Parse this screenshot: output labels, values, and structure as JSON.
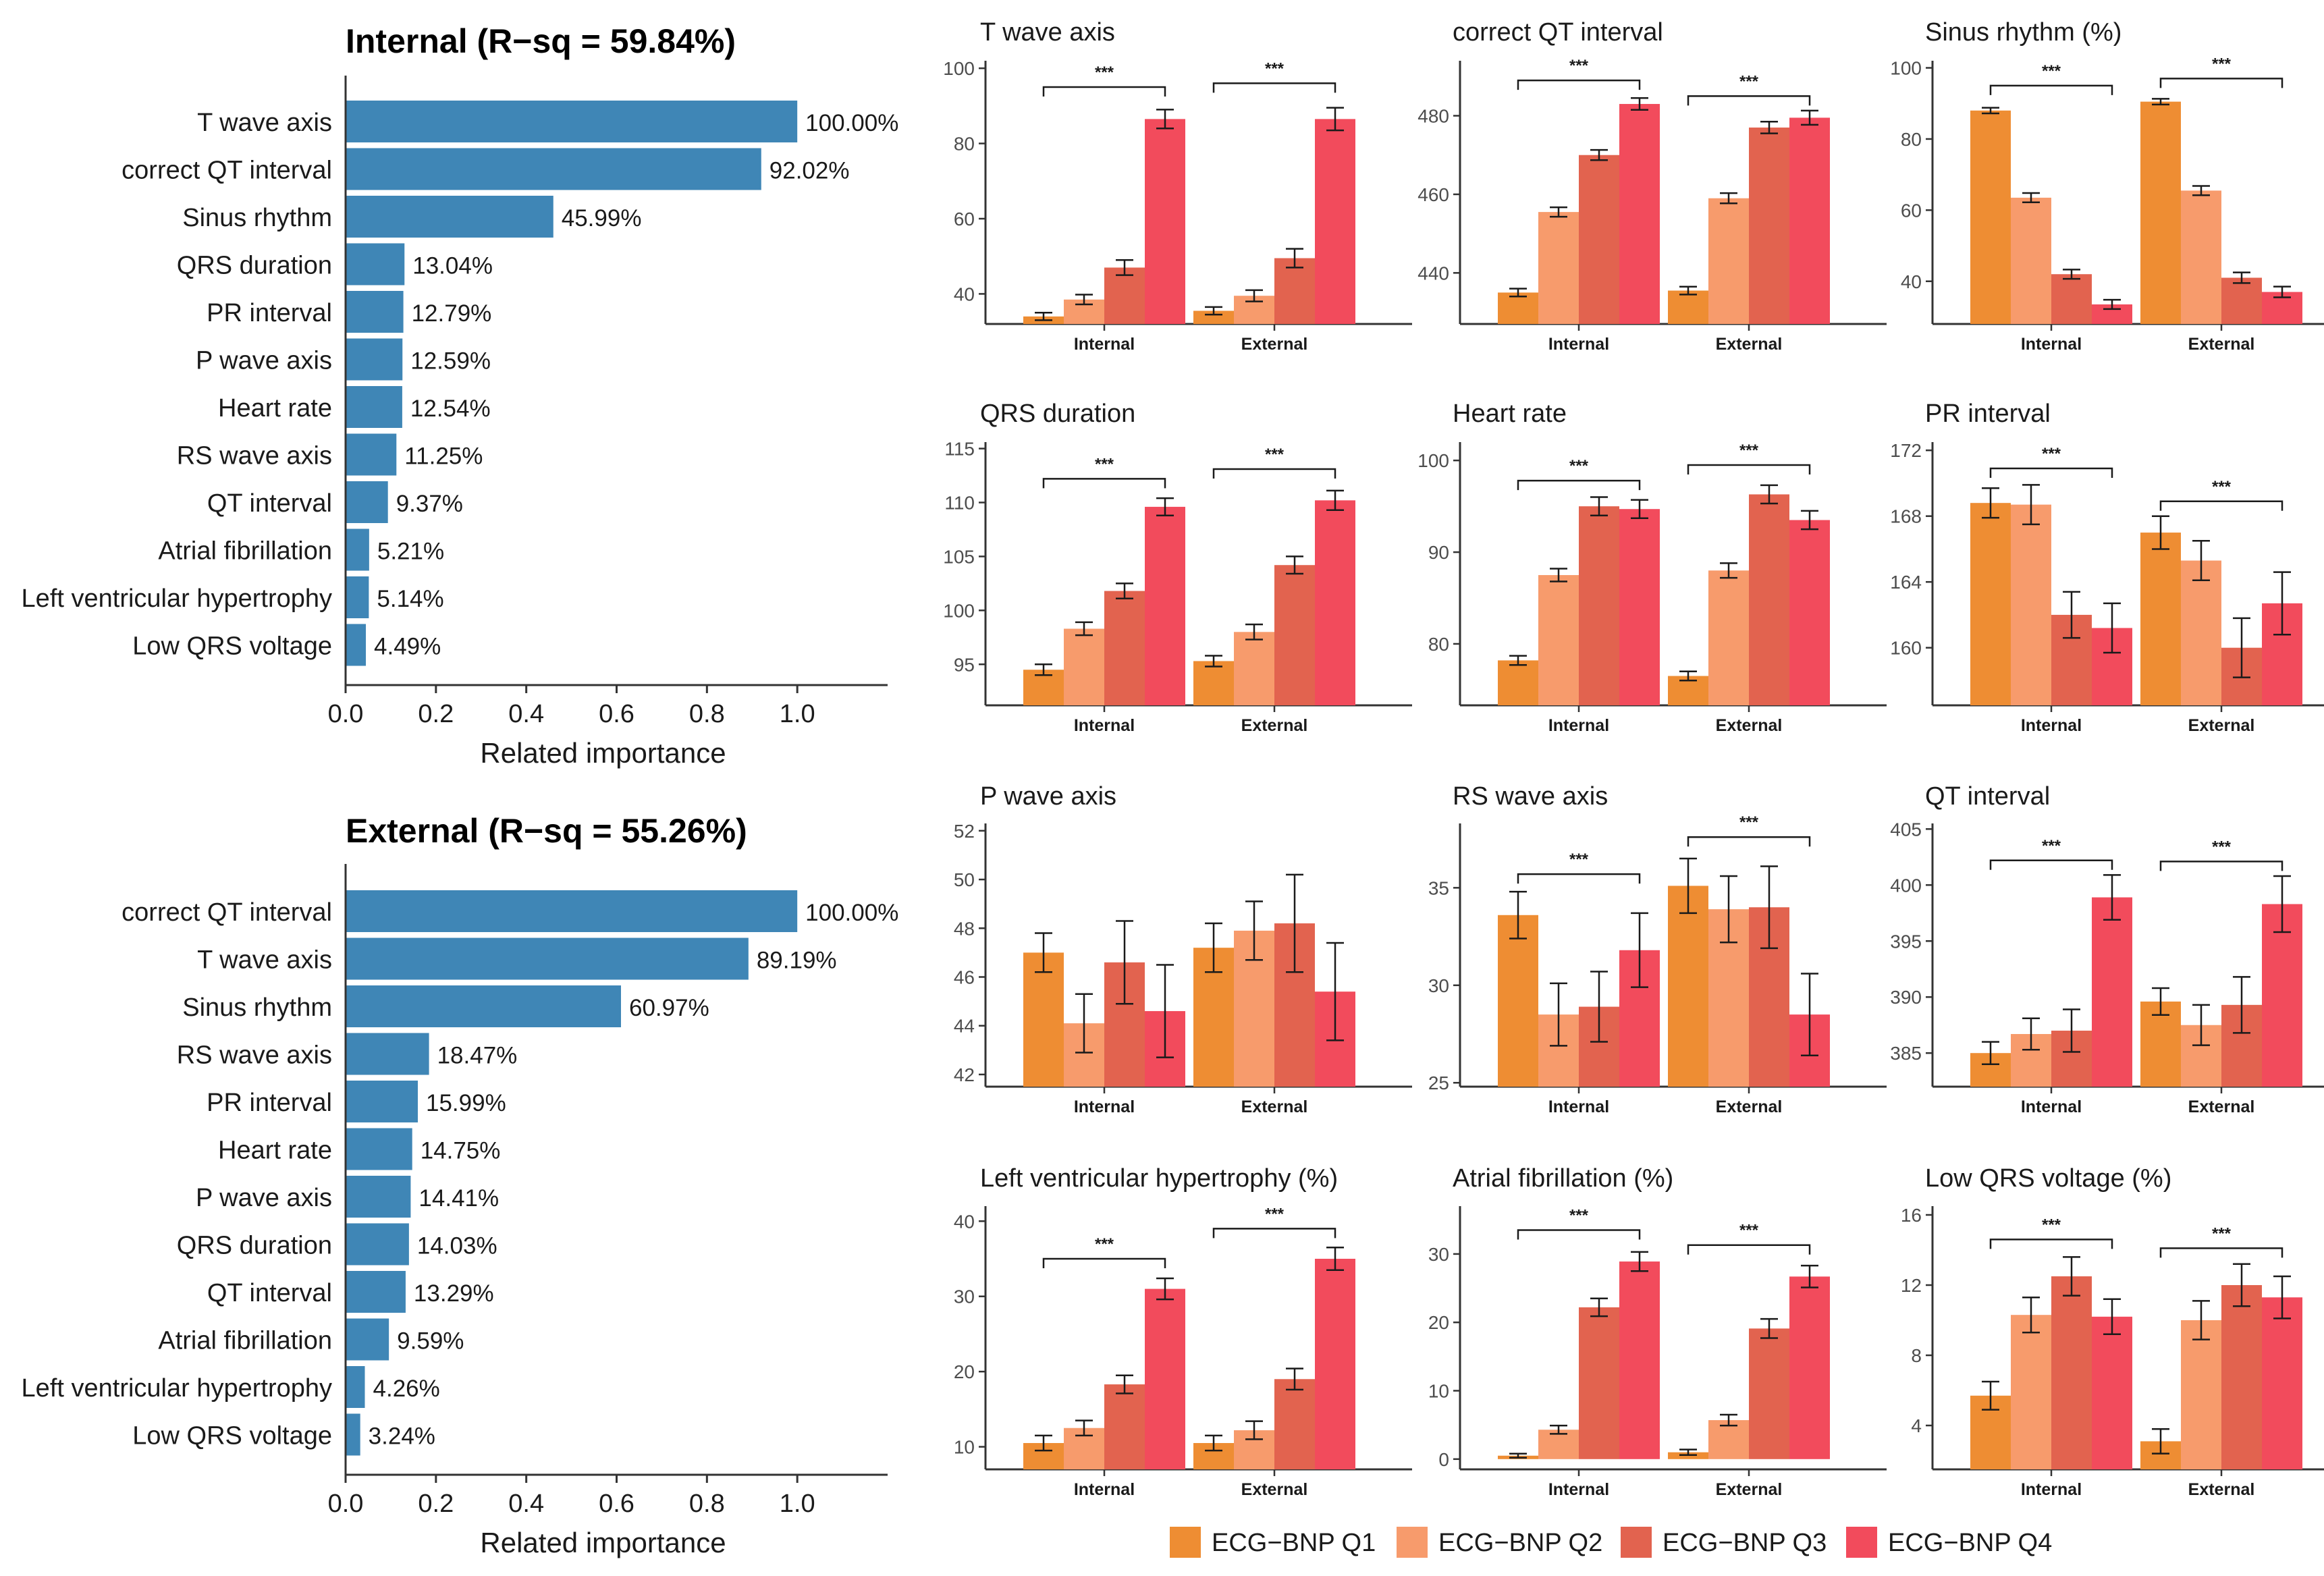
{
  "colors": {
    "importance_bar": "#3f86b6",
    "q1": "#ee8d33",
    "q2": "#f79b6c",
    "q3": "#e2634f",
    "q4": "#f24b5c",
    "axis": "#333333",
    "tick": "#4d4d4d"
  },
  "legend": [
    "ECG−BNP Q1",
    "ECG−BNP Q2",
    "ECG−BNP Q3",
    "ECG−BNP Q4"
  ],
  "chart_data": [
    {
      "type": "bar",
      "orientation": "horizontal",
      "title": "Internal (R−sq = 59.84%)",
      "xlabel": "Related importance",
      "xlim": [
        0,
        1.2
      ],
      "xticks": [
        "0.0",
        "0.2",
        "0.4",
        "0.6",
        "0.8",
        "1.0"
      ],
      "categories": [
        "T wave axis",
        "correct QT interval",
        "Sinus rhythm",
        "QRS duration",
        "PR interval",
        "P wave axis",
        "Heart rate",
        "RS wave axis",
        "QT interval",
        "Atrial fibrillation",
        "Left ventricular hypertrophy",
        "Low QRS voltage"
      ],
      "values": [
        1.0,
        0.9202,
        0.4599,
        0.1304,
        0.1279,
        0.1259,
        0.1254,
        0.1125,
        0.0937,
        0.0521,
        0.0514,
        0.0449
      ],
      "labels": [
        "100.00%",
        "92.02%",
        "45.99%",
        "13.04%",
        "12.79%",
        "12.59%",
        "12.54%",
        "11.25%",
        "9.37%",
        "5.21%",
        "5.14%",
        "4.49%"
      ]
    },
    {
      "type": "bar",
      "orientation": "horizontal",
      "title": "External (R−sq = 55.26%)",
      "xlabel": "Related importance",
      "xlim": [
        0,
        1.2
      ],
      "xticks": [
        "0.0",
        "0.2",
        "0.4",
        "0.6",
        "0.8",
        "1.0"
      ],
      "categories": [
        "correct QT interval",
        "T wave axis",
        "Sinus rhythm",
        "RS wave axis",
        "PR interval",
        "Heart rate",
        "P wave axis",
        "QRS duration",
        "QT interval",
        "Atrial fibrillation",
        "Left ventricular hypertrophy",
        "Low QRS voltage"
      ],
      "values": [
        1.0,
        0.8919,
        0.6097,
        0.1847,
        0.1599,
        0.1475,
        0.1441,
        0.1403,
        0.1329,
        0.0959,
        0.0426,
        0.0324
      ],
      "labels": [
        "100.00%",
        "89.19%",
        "60.97%",
        "18.47%",
        "15.99%",
        "14.75%",
        "14.41%",
        "14.03%",
        "13.29%",
        "9.59%",
        "4.26%",
        "3.24%"
      ]
    },
    {
      "type": "bar",
      "title": "T wave axis",
      "categories": [
        "Internal",
        "External"
      ],
      "ylim": [
        32,
        102
      ],
      "yticks": [
        40,
        60,
        80,
        100
      ],
      "series": [
        {
          "name": "ECG−BNP Q1",
          "values": [
            34,
            35.5
          ],
          "err": [
            1,
            1
          ]
        },
        {
          "name": "ECG−BNP Q2",
          "values": [
            38.5,
            39.5
          ],
          "err": [
            1.3,
            1.5
          ]
        },
        {
          "name": "ECG−BNP Q3",
          "values": [
            47,
            49.5
          ],
          "err": [
            2,
            2.5
          ]
        },
        {
          "name": "ECG−BNP Q4",
          "values": [
            86.5,
            86.5
          ],
          "err": [
            2.5,
            3
          ]
        }
      ],
      "brackets": [
        {
          "group": 0,
          "label": "***",
          "y": 95
        },
        {
          "group": 1,
          "label": "***",
          "y": 96
        }
      ]
    },
    {
      "type": "bar",
      "title": "correct QT interval",
      "categories": [
        "Internal",
        "External"
      ],
      "ylim": [
        427,
        494
      ],
      "yticks": [
        440,
        460,
        480
      ],
      "series": [
        {
          "name": "ECG−BNP Q1",
          "values": [
            435,
            435.5
          ],
          "err": [
            1,
            1
          ]
        },
        {
          "name": "ECG−BNP Q2",
          "values": [
            455.5,
            459
          ],
          "err": [
            1.2,
            1.3
          ]
        },
        {
          "name": "ECG−BNP Q3",
          "values": [
            470,
            477
          ],
          "err": [
            1.3,
            1.5
          ]
        },
        {
          "name": "ECG−BNP Q4",
          "values": [
            483,
            479.5
          ],
          "err": [
            1.5,
            1.8
          ]
        }
      ],
      "brackets": [
        {
          "group": 0,
          "label": "***",
          "y": 489
        },
        {
          "group": 1,
          "label": "***",
          "y": 485
        }
      ]
    },
    {
      "type": "bar",
      "title": "Sinus rhythm (%)",
      "categories": [
        "Internal",
        "External"
      ],
      "ylim": [
        28,
        102
      ],
      "yticks": [
        40,
        60,
        80,
        100
      ],
      "series": [
        {
          "name": "ECG−BNP Q1",
          "values": [
            88,
            90.5
          ],
          "err": [
            0.8,
            0.8
          ]
        },
        {
          "name": "ECG−BNP Q2",
          "values": [
            63.5,
            65.5
          ],
          "err": [
            1.3,
            1.3
          ]
        },
        {
          "name": "ECG−BNP Q3",
          "values": [
            42,
            41
          ],
          "err": [
            1.3,
            1.5
          ]
        },
        {
          "name": "ECG−BNP Q4",
          "values": [
            33.5,
            37
          ],
          "err": [
            1.3,
            1.5
          ]
        }
      ],
      "brackets": [
        {
          "group": 0,
          "label": "***",
          "y": 95
        },
        {
          "group": 1,
          "label": "***",
          "y": 97
        }
      ]
    },
    {
      "type": "bar",
      "title": "QRS duration",
      "categories": [
        "Internal",
        "External"
      ],
      "ylim": [
        91.2,
        115.6
      ],
      "yticks": [
        95,
        100,
        105,
        110,
        115
      ],
      "series": [
        {
          "name": "ECG−BNP Q1",
          "values": [
            94.5,
            95.3
          ],
          "err": [
            0.5,
            0.5
          ]
        },
        {
          "name": "ECG−BNP Q2",
          "values": [
            98.3,
            98
          ],
          "err": [
            0.6,
            0.7
          ]
        },
        {
          "name": "ECG−BNP Q3",
          "values": [
            101.8,
            104.2
          ],
          "err": [
            0.7,
            0.8
          ]
        },
        {
          "name": "ECG−BNP Q4",
          "values": [
            109.6,
            110.2
          ],
          "err": [
            0.8,
            0.9
          ]
        }
      ],
      "brackets": [
        {
          "group": 0,
          "label": "***",
          "y": 112.2
        },
        {
          "group": 1,
          "label": "***",
          "y": 113.1
        }
      ]
    },
    {
      "type": "bar",
      "title": "Heart rate",
      "categories": [
        "Internal",
        "External"
      ],
      "ylim": [
        73.3,
        102
      ],
      "yticks": [
        80,
        90,
        100
      ],
      "series": [
        {
          "name": "ECG−BNP Q1",
          "values": [
            78.2,
            76.5
          ],
          "err": [
            0.5,
            0.5
          ]
        },
        {
          "name": "ECG−BNP Q2",
          "values": [
            87.5,
            88
          ],
          "err": [
            0.7,
            0.8
          ]
        },
        {
          "name": "ECG−BNP Q3",
          "values": [
            95,
            96.3
          ],
          "err": [
            1,
            1
          ]
        },
        {
          "name": "ECG−BNP Q4",
          "values": [
            94.7,
            93.5
          ],
          "err": [
            1,
            1
          ]
        }
      ],
      "brackets": [
        {
          "group": 0,
          "label": "***",
          "y": 97.8
        },
        {
          "group": 1,
          "label": "***",
          "y": 99.5
        }
      ]
    },
    {
      "type": "bar",
      "title": "PR interval",
      "categories": [
        "Internal",
        "External"
      ],
      "ylim": [
        156.5,
        172.5
      ],
      "yticks": [
        160,
        164,
        168,
        172
      ],
      "series": [
        {
          "name": "ECG−BNP Q1",
          "values": [
            168.8,
            167
          ],
          "err": [
            0.9,
            1
          ]
        },
        {
          "name": "ECG−BNP Q2",
          "values": [
            168.7,
            165.3
          ],
          "err": [
            1.2,
            1.2
          ]
        },
        {
          "name": "ECG−BNP Q3",
          "values": [
            162,
            160
          ],
          "err": [
            1.4,
            1.8
          ]
        },
        {
          "name": "ECG−BNP Q4",
          "values": [
            161.2,
            162.7
          ],
          "err": [
            1.5,
            1.9
          ]
        }
      ],
      "brackets": [
        {
          "group": 0,
          "label": "***",
          "y": 170.9
        },
        {
          "group": 1,
          "label": "***",
          "y": 168.9
        }
      ]
    },
    {
      "type": "bar",
      "title": "P wave axis",
      "categories": [
        "Internal",
        "External"
      ],
      "ylim": [
        41.5,
        52.3
      ],
      "yticks": [
        42,
        44,
        46,
        48,
        50,
        52
      ],
      "series": [
        {
          "name": "ECG−BNP Q1",
          "values": [
            47,
            47.2
          ],
          "err": [
            0.8,
            1
          ]
        },
        {
          "name": "ECG−BNP Q2",
          "values": [
            44.1,
            47.9
          ],
          "err": [
            1.2,
            1.2
          ]
        },
        {
          "name": "ECG−BNP Q3",
          "values": [
            46.6,
            48.2
          ],
          "err": [
            1.7,
            2
          ]
        },
        {
          "name": "ECG−BNP Q4",
          "values": [
            44.6,
            45.4
          ],
          "err": [
            1.9,
            2
          ]
        }
      ],
      "brackets": []
    },
    {
      "type": "bar",
      "title": "RS wave axis",
      "categories": [
        "Internal",
        "External"
      ],
      "ylim": [
        24.8,
        38.3
      ],
      "yticks": [
        25,
        30,
        35
      ],
      "series": [
        {
          "name": "ECG−BNP Q1",
          "values": [
            33.6,
            35.1
          ],
          "err": [
            1.2,
            1.4
          ]
        },
        {
          "name": "ECG−BNP Q2",
          "values": [
            28.5,
            33.9
          ],
          "err": [
            1.6,
            1.7
          ]
        },
        {
          "name": "ECG−BNP Q3",
          "values": [
            28.9,
            34
          ],
          "err": [
            1.8,
            2.1
          ]
        },
        {
          "name": "ECG−BNP Q4",
          "values": [
            31.8,
            28.5
          ],
          "err": [
            1.9,
            2.1
          ]
        }
      ],
      "brackets": [
        {
          "group": 0,
          "label": "***",
          "y": 35.7
        },
        {
          "group": 1,
          "label": "***",
          "y": 37.6
        }
      ]
    },
    {
      "type": "bar",
      "title": "QT interval",
      "categories": [
        "Internal",
        "External"
      ],
      "ylim": [
        382,
        405.5
      ],
      "yticks": [
        385,
        390,
        395,
        400,
        405
      ],
      "series": [
        {
          "name": "ECG−BNP Q1",
          "values": [
            385,
            389.6
          ],
          "err": [
            1,
            1.2
          ]
        },
        {
          "name": "ECG−BNP Q2",
          "values": [
            386.7,
            387.5
          ],
          "err": [
            1.4,
            1.8
          ]
        },
        {
          "name": "ECG−BNP Q3",
          "values": [
            387,
            389.3
          ],
          "err": [
            1.9,
            2.5
          ]
        },
        {
          "name": "ECG−BNP Q4",
          "values": [
            398.9,
            398.3
          ],
          "err": [
            2,
            2.5
          ]
        }
      ],
      "brackets": [
        {
          "group": 0,
          "label": "***",
          "y": 402.2
        },
        {
          "group": 1,
          "label": "***",
          "y": 402.1
        }
      ]
    },
    {
      "type": "bar",
      "title": "Left ventricular hypertrophy (%)",
      "categories": [
        "Internal",
        "External"
      ],
      "ylim": [
        7,
        42
      ],
      "yticks": [
        10,
        20,
        30,
        40
      ],
      "series": [
        {
          "name": "ECG−BNP Q1",
          "values": [
            10.5,
            10.5
          ],
          "err": [
            1,
            1
          ]
        },
        {
          "name": "ECG−BNP Q2",
          "values": [
            12.5,
            12.2
          ],
          "err": [
            1,
            1.2
          ]
        },
        {
          "name": "ECG−BNP Q3",
          "values": [
            18.3,
            19
          ],
          "err": [
            1.2,
            1.4
          ]
        },
        {
          "name": "ECG−BNP Q4",
          "values": [
            31,
            35
          ],
          "err": [
            1.4,
            1.5
          ]
        }
      ],
      "brackets": [
        {
          "group": 0,
          "label": "***",
          "y": 35
        },
        {
          "group": 1,
          "label": "***",
          "y": 39
        }
      ]
    },
    {
      "type": "bar",
      "title": "Atrial fibrillation (%)",
      "categories": [
        "Internal",
        "External"
      ],
      "ylim": [
        -1.5,
        37
      ],
      "yticks": [
        0,
        10,
        20,
        30
      ],
      "series": [
        {
          "name": "ECG−BNP Q1",
          "values": [
            0.5,
            1
          ],
          "err": [
            0.3,
            0.4
          ]
        },
        {
          "name": "ECG−BNP Q2",
          "values": [
            4.3,
            5.7
          ],
          "err": [
            0.6,
            0.8
          ]
        },
        {
          "name": "ECG−BNP Q3",
          "values": [
            22.2,
            19.1
          ],
          "err": [
            1.3,
            1.4
          ]
        },
        {
          "name": "ECG−BNP Q4",
          "values": [
            28.9,
            26.7
          ],
          "err": [
            1.4,
            1.6
          ]
        }
      ],
      "brackets": [
        {
          "group": 0,
          "label": "***",
          "y": 33.5
        },
        {
          "group": 1,
          "label": "***",
          "y": 31.3
        }
      ]
    },
    {
      "type": "bar",
      "title": "Low QRS voltage (%)",
      "categories": [
        "Internal",
        "External"
      ],
      "ylim": [
        1.5,
        16.5
      ],
      "yticks": [
        4,
        8,
        12,
        16
      ],
      "series": [
        {
          "name": "ECG−BNP Q1",
          "values": [
            5.7,
            3.1
          ],
          "err": [
            0.8,
            0.7
          ]
        },
        {
          "name": "ECG−BNP Q2",
          "values": [
            10.3,
            10
          ],
          "err": [
            1,
            1.1
          ]
        },
        {
          "name": "ECG−BNP Q3",
          "values": [
            12.5,
            12
          ],
          "err": [
            1.1,
            1.2
          ]
        },
        {
          "name": "ECG−BNP Q4",
          "values": [
            10.2,
            11.3
          ],
          "err": [
            1,
            1.2
          ]
        }
      ],
      "brackets": [
        {
          "group": 0,
          "label": "***",
          "y": 14.6
        },
        {
          "group": 1,
          "label": "***",
          "y": 14.1
        }
      ]
    }
  ]
}
